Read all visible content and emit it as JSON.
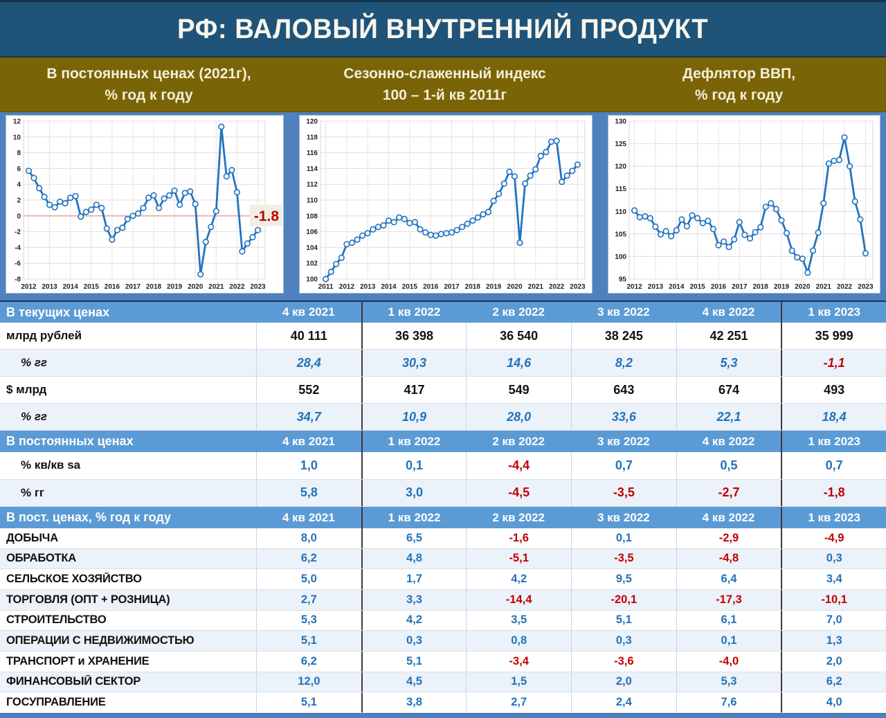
{
  "title": "РФ: ВАЛОВЫЙ ВНУТРЕННИЙ ПРОДУКТ",
  "colors": {
    "title_band_blue": "#1F5378",
    "olive_band": "#7A6408",
    "charts_band_blue": "#4E81BD",
    "table_header_blue": "#5B9BD5",
    "positive_value_blue": "#2272B8",
    "negative_value_red": "#C00000",
    "chart_line_blue": "#2273BE",
    "zero_line_red": "#E89B96",
    "annotation_bg": "#F1EEE2"
  },
  "chart_headers": [
    {
      "line1": "В постоянных ценах (2021г),",
      "line2": "% год к году"
    },
    {
      "line1": "Сезонно-слаженный индекс",
      "line2": "100 – 1-й кв 2011г"
    },
    {
      "line1": "Дефлятор ВВП,",
      "line2": "% год к году"
    }
  ],
  "chart_data": [
    {
      "type": "line",
      "title": "В постоянных ценах (2021г), % год к году",
      "x0": 2012,
      "dx": 0.25,
      "year_range": [
        2012,
        2023
      ],
      "ylim": [
        -8,
        12
      ],
      "ytick": 2,
      "grid": true,
      "zero_line": true,
      "annotation": {
        "text": "-1.8"
      },
      "values": [
        5.7,
        4.8,
        3.5,
        2.4,
        1.4,
        1.1,
        1.8,
        1.6,
        2.3,
        2.5,
        -0.1,
        0.5,
        0.8,
        1.4,
        1.0,
        -1.6,
        -3.0,
        -1.8,
        -1.5,
        -0.4,
        0.0,
        0.3,
        1.0,
        2.3,
        2.6,
        1.0,
        2.2,
        2.6,
        3.2,
        1.4,
        2.9,
        3.1,
        1.5,
        -7.4,
        -3.3,
        -1.4,
        0.6,
        11.3,
        5.0,
        5.8,
        3.0,
        -4.5,
        -3.5,
        -2.7,
        -1.8
      ]
    },
    {
      "type": "line",
      "title": "Сезонно-слаженный индекс, 100 – 1-й кв 2011г",
      "x0": 2011,
      "dx": 0.25,
      "year_range": [
        2011,
        2023
      ],
      "ylim": [
        100,
        120
      ],
      "ytick": 2,
      "grid": true,
      "values": [
        100.0,
        100.9,
        101.9,
        102.7,
        104.4,
        104.6,
        105.0,
        105.5,
        105.8,
        106.3,
        106.6,
        106.8,
        107.4,
        107.2,
        107.8,
        107.6,
        107.1,
        107.2,
        106.3,
        105.9,
        105.6,
        105.5,
        105.7,
        105.8,
        105.9,
        106.2,
        106.6,
        107.0,
        107.4,
        107.8,
        108.2,
        108.5,
        109.9,
        110.8,
        112.1,
        113.6,
        113.0,
        104.6,
        112.1,
        113.1,
        113.9,
        115.6,
        116.1,
        117.4,
        117.5,
        112.3,
        113.1,
        113.7,
        114.5
      ]
    },
    {
      "type": "line",
      "title": "Дефлятор ВВП, % год к году",
      "x0": 2012,
      "dx": 0.25,
      "year_range": [
        2012,
        2023
      ],
      "ylim": [
        95,
        130
      ],
      "ytick": 5,
      "grid": true,
      "values": [
        110.2,
        108.7,
        108.9,
        108.5,
        106.6,
        104.9,
        105.6,
        104.5,
        105.8,
        108.2,
        106.7,
        109.1,
        108.5,
        107.4,
        107.9,
        106.1,
        102.5,
        103.3,
        102.1,
        103.8,
        107.6,
        104.8,
        104.0,
        105.4,
        106.5,
        111.0,
        111.8,
        110.5,
        108.0,
        105.2,
        101.3,
        99.8,
        99.5,
        96.4,
        101.3,
        105.3,
        111.8,
        120.6,
        121.2,
        121.4,
        126.4,
        120.0,
        112.2,
        108.2,
        100.7
      ]
    }
  ],
  "table": {
    "quarters": [
      "4 кв 2021",
      "1 кв 2022",
      "2 кв 2022",
      "3 кв 2022",
      "4 кв 2022",
      "1 кв 2023"
    ],
    "sections": [
      {
        "header": "В текущих ценах",
        "rows": [
          {
            "label": "млрд рублей",
            "variant": "number",
            "values": [
              "40 111",
              "36 398",
              "36 540",
              "38 245",
              "42 251",
              "35 999"
            ]
          },
          {
            "label": "% гг",
            "variant": "percent",
            "italic": true,
            "indent": true,
            "values": [
              "28,4",
              "30,3",
              "14,6",
              "8,2",
              "5,3",
              "-1,1"
            ]
          },
          {
            "label": "$ млрд",
            "variant": "number",
            "values": [
              "552",
              "417",
              "549",
              "643",
              "674",
              "493"
            ]
          },
          {
            "label": "% гг",
            "variant": "percent",
            "italic": true,
            "indent": true,
            "values": [
              "34,7",
              "10,9",
              "28,0",
              "33,6",
              "22,1",
              "18,4"
            ]
          }
        ]
      },
      {
        "header": "В постоянных ценах",
        "rows": [
          {
            "label": "% кв/кв sa",
            "variant": "percent",
            "indent": true,
            "values": [
              "1,0",
              "0,1",
              "-4,4",
              "0,7",
              "0,5",
              "0,7"
            ]
          },
          {
            "label": "% гг",
            "variant": "percent",
            "indent": true,
            "values": [
              "5,8",
              "3,0",
              "-4,5",
              "-3,5",
              "-2,7",
              "-1,8"
            ]
          }
        ]
      },
      {
        "header": "В пост. ценах, % год к году",
        "rows": [
          {
            "label": "ДОБЫЧА",
            "variant": "percent",
            "values": [
              "8,0",
              "6,5",
              "-1,6",
              "0,1",
              "-2,9",
              "-4,9"
            ]
          },
          {
            "label": "ОБРАБОТКА",
            "variant": "percent",
            "values": [
              "6,2",
              "4,8",
              "-5,1",
              "-3,5",
              "-4,8",
              "0,3"
            ]
          },
          {
            "label": "СЕЛЬСКОЕ ХОЗЯЙСТВО",
            "variant": "percent",
            "values": [
              "5,0",
              "1,7",
              "4,2",
              "9,5",
              "6,4",
              "3,4"
            ]
          },
          {
            "label": "ТОРГОВЛЯ (ОПТ + РОЗНИЦА)",
            "variant": "percent",
            "values": [
              "2,7",
              "3,3",
              "-14,4",
              "-20,1",
              "-17,3",
              "-10,1"
            ]
          },
          {
            "label": "СТРОИТЕЛЬСТВО",
            "variant": "percent",
            "values": [
              "5,3",
              "4,2",
              "3,5",
              "5,1",
              "6,1",
              "7,0"
            ]
          },
          {
            "label": "ОПЕРАЦИИ С НЕДВИЖИМОСТЬЮ",
            "variant": "percent",
            "values": [
              "5,1",
              "0,3",
              "0,8",
              "0,3",
              "0,1",
              "1,3"
            ]
          },
          {
            "label": "ТРАНСПОРТ и ХРАНЕНИЕ",
            "variant": "percent",
            "values": [
              "6,2",
              "5,1",
              "-3,4",
              "-3,6",
              "-4,0",
              "2,0"
            ]
          },
          {
            "label": "ФИНАНСОВЫЙ СЕКТОР",
            "variant": "percent",
            "values": [
              "12,0",
              "4,5",
              "1,5",
              "2,0",
              "5,3",
              "6,2"
            ]
          },
          {
            "label": "ГОСУПРАВЛЕНИЕ",
            "variant": "percent",
            "values": [
              "5,1",
              "3,8",
              "2,7",
              "2,4",
              "7,6",
              "4,0"
            ]
          }
        ]
      }
    ]
  }
}
